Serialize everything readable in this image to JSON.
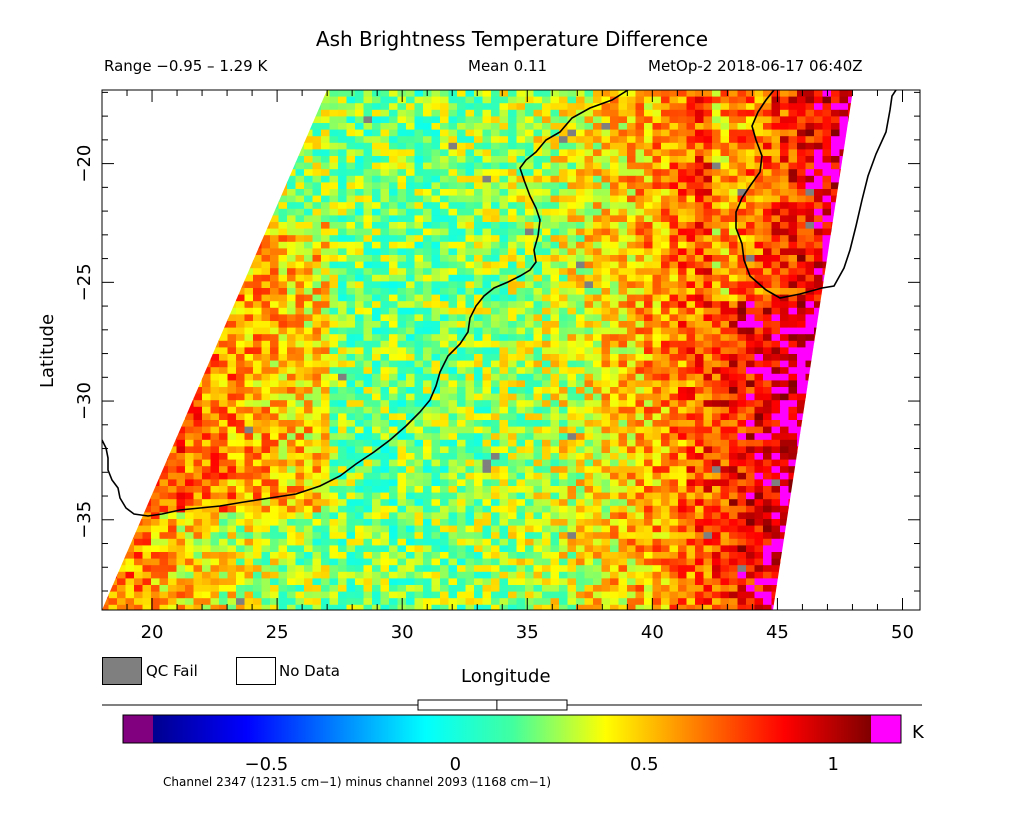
{
  "title": "Ash Brightness Temperature Difference",
  "info": {
    "range": "Range −0.95 – 1.29 K",
    "mean": "Mean 0.11",
    "satellite": "MetOp-2 2018-06-17 06:40Z"
  },
  "axes": {
    "xlabel": "Longitude",
    "ylabel": "Latitude",
    "x_ticks": [
      "20",
      "25",
      "30",
      "35",
      "40",
      "45",
      "50"
    ],
    "y_ticks": [
      "−20",
      "−25",
      "−30",
      "−35"
    ],
    "x_tick_values": [
      20,
      25,
      30,
      35,
      40,
      45,
      50
    ],
    "y_tick_values": [
      -20,
      -25,
      -30,
      -35
    ],
    "lon_range": [
      18,
      50.7
    ],
    "lat_range": [
      -38.8,
      -16.9
    ]
  },
  "legend": {
    "qc_fail": "QC Fail",
    "no_data": "No Data",
    "qc_color": "#7f7f7f"
  },
  "colorbar": {
    "ticks": [
      "−0.5",
      "0",
      "0.5",
      "1"
    ],
    "tick_values": [
      -0.5,
      0,
      0.5,
      1
    ],
    "unit": "K",
    "min": -0.8,
    "max": 1.1,
    "mean": 0.11,
    "range": [
      -0.95,
      1.29
    ],
    "under_color": "#800080",
    "over_color": "#ff00ff"
  },
  "footnote": "Channel 2347 (1231.5 cm−1) minus channel 2093 (1168 cm−1)",
  "chart_data": {
    "type": "heatmap",
    "title": "Ash Brightness Temperature Difference",
    "xlabel": "Longitude",
    "ylabel": "Latitude",
    "xlim": [
      18,
      50.7
    ],
    "ylim": [
      -38.8,
      -16.9
    ],
    "value_range": [
      -0.95,
      1.29
    ],
    "mean": 0.11,
    "units": "K",
    "swath_corners_lonlat": [
      [
        26.9,
        -16.9
      ],
      [
        47.9,
        -16.9
      ],
      [
        44.8,
        -38.8
      ],
      [
        18.1,
        -38.8
      ]
    ]
  }
}
